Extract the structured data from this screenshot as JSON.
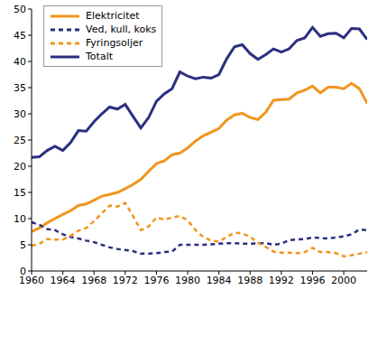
{
  "chart_data": {
    "type": "line",
    "x": [
      1960,
      1961,
      1962,
      1963,
      1964,
      1965,
      1966,
      1967,
      1968,
      1969,
      1970,
      1971,
      1972,
      1973,
      1974,
      1975,
      1976,
      1977,
      1978,
      1979,
      1980,
      1981,
      1982,
      1983,
      1984,
      1985,
      1986,
      1987,
      1988,
      1989,
      1990,
      1991,
      1992,
      1993,
      1994,
      1995,
      1996,
      1997,
      1998,
      1999,
      2000,
      2001,
      2002,
      2003
    ],
    "xlim": [
      1960,
      2003
    ],
    "xticks": [
      1960,
      1964,
      1968,
      1972,
      1976,
      1980,
      1984,
      1988,
      1992,
      1996,
      2000
    ],
    "ylim": [
      0,
      50
    ],
    "yticks": [
      0,
      5,
      10,
      15,
      20,
      25,
      30,
      35,
      40,
      45,
      50
    ],
    "grid": false,
    "legend": "upper left",
    "series": [
      {
        "name": "Elektricitet",
        "color": "#f0961e",
        "line_style": "solid",
        "values": [
          7.5,
          8.2,
          9.2,
          10,
          10.8,
          11.5,
          12.5,
          12.8,
          13.5,
          14.3,
          14.6,
          15,
          15.7,
          16.5,
          17.5,
          19,
          20.5,
          21,
          22.2,
          22.5,
          23.5,
          24.8,
          25.8,
          26.5,
          27.2,
          28.8,
          29.8,
          30.1,
          29.3,
          28.9,
          30.3,
          32.6,
          32.7,
          32.8,
          34,
          34.5,
          35.3,
          34,
          35.1,
          35.1,
          34.8,
          35.8,
          34.8,
          32
        ]
      },
      {
        "name": "Ved, kull, koks",
        "color": "#2b2f80",
        "line_style": "dashed",
        "values": [
          9.3,
          8.8,
          8,
          7.8,
          7,
          6.5,
          6.2,
          5.8,
          5.5,
          5,
          4.5,
          4.2,
          4,
          3.8,
          3.3,
          3.3,
          3.4,
          3.6,
          3.7,
          5,
          5,
          5,
          5,
          5.1,
          5.2,
          5.3,
          5.3,
          5.2,
          5.2,
          5.3,
          5.3,
          5,
          5.2,
          5.9,
          6,
          6.1,
          6.4,
          6.3,
          6.2,
          6.4,
          6.6,
          7,
          7.9,
          7.8
        ]
      },
      {
        "name": "Fyringsoljer",
        "color": "#f0961e",
        "line_style": "dashed",
        "values": [
          4.8,
          5.2,
          6.1,
          6,
          6,
          6.7,
          7.7,
          8.2,
          9.5,
          11,
          12.5,
          12.3,
          13,
          10.5,
          7.8,
          8.5,
          10.2,
          9.8,
          10.2,
          10.5,
          9.7,
          7.8,
          6.5,
          5.8,
          5.6,
          6.5,
          7.3,
          7.2,
          6.5,
          5.4,
          4.6,
          3.7,
          3.5,
          3.5,
          3.4,
          3.6,
          4.4,
          3.6,
          3.6,
          3.4,
          2.8,
          3,
          3.3,
          3.6
        ]
      },
      {
        "name": "Totalt",
        "color": "#2b2f80",
        "line_style": "solid",
        "values": [
          21.7,
          21.8,
          23,
          23.8,
          23,
          24.5,
          26.8,
          26.7,
          28.5,
          30,
          31.3,
          30.9,
          31.8,
          29.5,
          27.3,
          29.3,
          32.4,
          33.8,
          34.8,
          38,
          37.2,
          36.7,
          37,
          36.8,
          37.5,
          40.5,
          42.8,
          43.2,
          41.5,
          40.4,
          41.3,
          42.4,
          41.8,
          42.4,
          44,
          44.5,
          46.5,
          44.8,
          45.3,
          45.4,
          44.5,
          46.3,
          46.2,
          44.2
        ]
      }
    ]
  }
}
